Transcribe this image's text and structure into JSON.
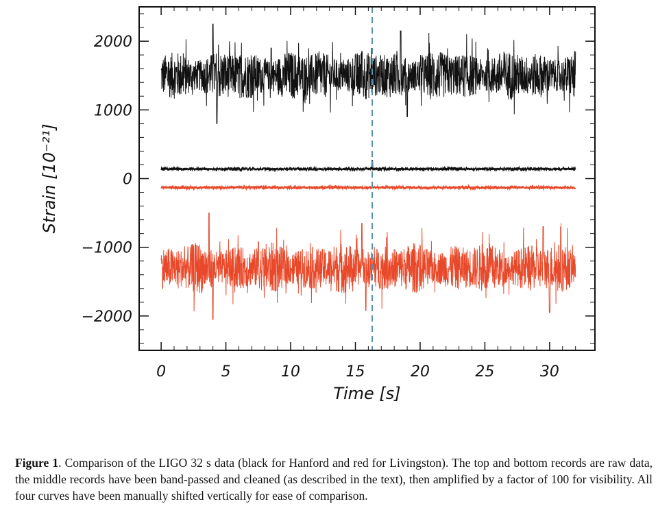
{
  "chart_data": {
    "type": "line",
    "xlabel": "Time [s]",
    "ylabel": "Strain [10⁻²¹]",
    "xlim": [
      -1.7,
      33.5
    ],
    "ylim": [
      -2500,
      2500
    ],
    "xticks": [
      "0",
      "5",
      "10",
      "15",
      "20",
      "25",
      "30"
    ],
    "xtick_values": [
      0,
      5,
      10,
      15,
      20,
      25,
      30
    ],
    "yticks": [
      "−2000",
      "−1000",
      "0",
      "1000",
      "2000"
    ],
    "ytick_values": [
      -2000,
      -1000,
      0,
      1000,
      2000
    ],
    "x_range": [
      0,
      32
    ],
    "vline": {
      "x": 16.3,
      "style": "dashed",
      "color": "#5b8fb0"
    },
    "series": [
      {
        "offset": 1500,
        "amplitude": 300,
        "color": "#111111",
        "bursts": [
          [
            4.0,
            750
          ],
          [
            4.3,
            -700
          ],
          [
            18.5,
            650
          ],
          [
            19.0,
            -600
          ],
          [
            8.5,
            400
          ],
          [
            15.5,
            350
          ]
        ]
      },
      {
        "offset": 140,
        "amplitude": 18,
        "color": "#111111",
        "bursts": [
          [
            16.3,
            120
          ]
        ]
      },
      {
        "offset": -130,
        "amplitude": 18,
        "color": "#e8492a",
        "bursts": []
      },
      {
        "offset": -1300,
        "amplitude": 300,
        "color": "#e8492a",
        "bursts": [
          [
            3.7,
            800
          ],
          [
            4.0,
            -750
          ],
          [
            15.5,
            650
          ],
          [
            15.8,
            -620
          ],
          [
            29.5,
            600
          ],
          [
            30.0,
            -650
          ],
          [
            7.5,
            380
          ]
        ]
      }
    ]
  },
  "caption": {
    "label": "Figure 1",
    "text": ". Comparison of the LIGO 32 s data (black for Hanford and red for Livingston). The top and bottom records are raw data, the middle records have been band-passed and cleaned (as described in the text), then amplified by a factor of 100 for visibility.  All four curves have been manually shifted vertically for ease of comparison."
  }
}
